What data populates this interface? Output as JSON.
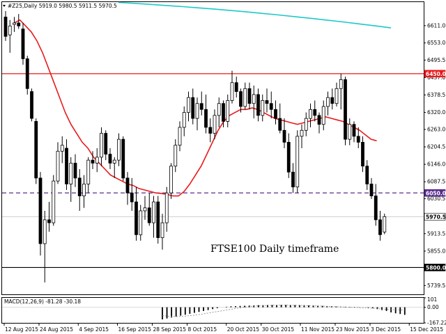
{
  "header": {
    "symbol_line": "#Z25,Daily  5919.0 5980.5 5911.5 5970.5",
    "annotation": "FTSE100 Daily timeframe"
  },
  "macd": {
    "label": "MACD(12,26,9) -81.28 -30.18",
    "axis_labels": [
      {
        "text": "101",
        "v": 101
      },
      {
        "text": "0.00",
        "v": 0
      },
      {
        "text": "-167.22",
        "v": -167.22
      }
    ]
  },
  "colors": {
    "background": "#ffffff",
    "candle": "#000000",
    "ma_fast": "#e8191b",
    "ma_slow": "#1ec8c8",
    "resistance": "#e8191b",
    "middle_level": "#5a2d8c",
    "support": "#000000",
    "current_price": "#c0c0c0",
    "macd_signal": "#808080"
  },
  "chart_data": {
    "type": "candlestick",
    "symbol": "#Z25",
    "timeframe": "Daily",
    "annotation": "FTSE100 Daily timeframe",
    "last_bar": {
      "open": 5919.0,
      "high": 5980.5,
      "low": 5911.5,
      "close": 5970.5
    },
    "ylim": [
      5710,
      6690
    ],
    "y_ticks": [
      6611.0,
      6553.0,
      6495.5,
      6437.0,
      6378.5,
      6320.0,
      6263.0,
      6204.5,
      6146.0,
      6087.5,
      6030.5,
      5913.5,
      5855.0,
      5739.5
    ],
    "x_ticks": [
      {
        "label": "12 Aug 2015",
        "index": 0
      },
      {
        "label": "24 Aug 2015",
        "index": 8
      },
      {
        "label": "4 Sep 2015",
        "index": 17
      },
      {
        "label": "16 Sep 2015",
        "index": 26
      },
      {
        "label": "28 Sep 2015",
        "index": 34
      },
      {
        "label": "8 Oct 2015",
        "index": 42
      },
      {
        "label": "20 Oct 2015",
        "index": 51
      },
      {
        "label": "30 Oct 2015",
        "index": 59
      },
      {
        "label": "11 Nov 2015",
        "index": 68
      },
      {
        "label": "23 Nov 2015",
        "index": 76
      },
      {
        "label": "3 Dec 2015",
        "index": 84
      },
      {
        "label": "15 Dec 2015",
        "index": 93
      }
    ],
    "levels": [
      {
        "name": "resistance",
        "value": 6450.0,
        "label": "6450.0",
        "style": "solid"
      },
      {
        "name": "middle",
        "value": 6050.0,
        "label": "6050.0",
        "style": "dashed"
      },
      {
        "name": "current",
        "value": 5970.5,
        "label": "5970.5",
        "style": "solid"
      },
      {
        "name": "support",
        "value": 5800.0,
        "label": "5800.0",
        "style": "solid"
      }
    ],
    "candles": [
      [
        6640,
        6660,
        6560,
        6575
      ],
      [
        6580,
        6630,
        6520,
        6610
      ],
      [
        6615,
        6640,
        6590,
        6620
      ],
      [
        6620,
        6650,
        6600,
        6610
      ],
      [
        6600,
        6620,
        6480,
        6500
      ],
      [
        6500,
        6510,
        6380,
        6400
      ],
      [
        6390,
        6400,
        6290,
        6300
      ],
      [
        6290,
        6300,
        6080,
        6100
      ],
      [
        6100,
        6120,
        5840,
        5880
      ],
      [
        5880,
        5990,
        5750,
        5960
      ],
      [
        5960,
        6020,
        5920,
        5950
      ],
      [
        5950,
        6110,
        5940,
        6090
      ],
      [
        6090,
        6220,
        6080,
        6190
      ],
      [
        6190,
        6240,
        6150,
        6210
      ],
      [
        6200,
        6230,
        6060,
        6080
      ],
      [
        6080,
        6170,
        6020,
        6150
      ],
      [
        6150,
        6180,
        6070,
        6100
      ],
      [
        6100,
        6130,
        5990,
        6040
      ],
      [
        6040,
        6110,
        6000,
        6080
      ],
      [
        6080,
        6170,
        6050,
        6160
      ],
      [
        6160,
        6190,
        6130,
        6150
      ],
      [
        6150,
        6200,
        6120,
        6170
      ],
      [
        6170,
        6270,
        6140,
        6250
      ],
      [
        6250,
        6260,
        6160,
        6180
      ],
      [
        6180,
        6200,
        6130,
        6150
      ],
      [
        6150,
        6170,
        6100,
        6160
      ],
      [
        6160,
        6250,
        6140,
        6230
      ],
      [
        6230,
        6240,
        6090,
        6100
      ],
      [
        6100,
        6120,
        6010,
        6050
      ],
      [
        6050,
        6100,
        5990,
        6020
      ],
      [
        6020,
        6070,
        5890,
        5910
      ],
      [
        5910,
        6010,
        5890,
        5990
      ],
      [
        5990,
        6040,
        5960,
        6000
      ],
      [
        6000,
        6050,
        5940,
        5950
      ],
      [
        5950,
        6040,
        5900,
        6020
      ],
      [
        6020,
        6040,
        5880,
        5900
      ],
      [
        5900,
        5980,
        5860,
        5950
      ],
      [
        5950,
        6070,
        5920,
        6050
      ],
      [
        6050,
        6150,
        6030,
        6140
      ],
      [
        6140,
        6230,
        6120,
        6210
      ],
      [
        6210,
        6290,
        6190,
        6270
      ],
      [
        6270,
        6340,
        6240,
        6320
      ],
      [
        6320,
        6390,
        6290,
        6370
      ],
      [
        6370,
        6400,
        6280,
        6300
      ],
      [
        6300,
        6370,
        6260,
        6350
      ],
      [
        6350,
        6390,
        6310,
        6330
      ],
      [
        6330,
        6380,
        6250,
        6270
      ],
      [
        6270,
        6300,
        6220,
        6250
      ],
      [
        6250,
        6330,
        6230,
        6310
      ],
      [
        6310,
        6370,
        6270,
        6350
      ],
      [
        6350,
        6360,
        6270,
        6290
      ],
      [
        6290,
        6380,
        6270,
        6360
      ],
      [
        6360,
        6460,
        6350,
        6420
      ],
      [
        6420,
        6440,
        6370,
        6390
      ],
      [
        6390,
        6400,
        6320,
        6340
      ],
      [
        6340,
        6420,
        6330,
        6400
      ],
      [
        6400,
        6420,
        6330,
        6350
      ],
      [
        6350,
        6410,
        6300,
        6380
      ],
      [
        6380,
        6400,
        6290,
        6310
      ],
      [
        6310,
        6380,
        6290,
        6360
      ],
      [
        6360,
        6400,
        6320,
        6350
      ],
      [
        6350,
        6390,
        6300,
        6330
      ],
      [
        6330,
        6360,
        6280,
        6300
      ],
      [
        6300,
        6350,
        6250,
        6260
      ],
      [
        6260,
        6300,
        6200,
        6220
      ],
      [
        6220,
        6250,
        6100,
        6120
      ],
      [
        6120,
        6150,
        6050,
        6070
      ],
      [
        6070,
        6260,
        6050,
        6240
      ],
      [
        6240,
        6280,
        6200,
        6260
      ],
      [
        6260,
        6320,
        6240,
        6300
      ],
      [
        6300,
        6350,
        6270,
        6330
      ],
      [
        6330,
        6360,
        6290,
        6310
      ],
      [
        6310,
        6320,
        6250,
        6280
      ],
      [
        6280,
        6360,
        6260,
        6340
      ],
      [
        6340,
        6390,
        6310,
        6370
      ],
      [
        6370,
        6400,
        6330,
        6350
      ],
      [
        6350,
        6420,
        6340,
        6400
      ],
      [
        6400,
        6450,
        6330,
        6430
      ],
      [
        6430,
        6440,
        6210,
        6230
      ],
      [
        6230,
        6300,
        6210,
        6280
      ],
      [
        6280,
        6290,
        6220,
        6240
      ],
      [
        6240,
        6270,
        6200,
        6220
      ],
      [
        6220,
        6240,
        6120,
        6140
      ],
      [
        6140,
        6160,
        6060,
        6080
      ],
      [
        6080,
        6100,
        6030,
        6040
      ],
      [
        6040,
        6080,
        5940,
        5960
      ],
      [
        5960,
        5990,
        5890,
        5910
      ],
      [
        5919,
        5980.5,
        5911.5,
        5970.5
      ]
    ],
    "ma_fast": [
      6620,
      6630,
      6610,
      6590,
      6560,
      6520,
      6470,
      6420,
      6370,
      6320,
      6280,
      6250,
      6220,
      6200,
      6170,
      6150,
      6130,
      6110,
      6100,
      6090,
      6080,
      6075,
      6065,
      6060,
      6055,
      6050,
      6048,
      6045,
      6040,
      6040,
      6055,
      6080,
      6110,
      6140,
      6180,
      6220,
      6260,
      6290,
      6310,
      6320,
      6330,
      6330,
      6335,
      6330,
      6320,
      6310,
      6300,
      6295,
      6290,
      6285,
      6280,
      6285,
      6290,
      6295,
      6300,
      6305,
      6300,
      6295,
      6290,
      6280,
      6270,
      6260,
      6245,
      6230,
      6225
    ],
    "ma_fast_start": 2,
    "ma_slow": [
      6690,
      6685,
      6680,
      6675,
      6670,
      6660,
      6650,
      6640,
      6630,
      6620,
      6610,
      6600,
      6595,
      6590,
      6580,
      6570,
      6560,
      6550
    ],
    "ma_slow_start": 36,
    "macd_hist": [
      -130,
      -120,
      -110,
      -100,
      -90,
      -80,
      -70,
      -60,
      -50,
      -40,
      -30,
      -20,
      -10,
      0,
      5,
      10,
      12,
      14,
      16,
      18,
      20,
      22,
      22,
      24,
      24,
      25,
      26,
      26,
      25,
      24,
      23,
      22,
      20,
      18,
      16,
      14,
      12,
      10,
      8,
      6,
      5,
      4,
      3,
      2,
      0,
      -5,
      -10,
      -20,
      -30,
      -40,
      -55,
      -65,
      -72,
      -81.28
    ],
    "macd_signal": [
      -90,
      -95,
      -98,
      -100,
      -98,
      -95,
      -90,
      -85,
      -78,
      -70,
      -62,
      -54,
      -46,
      -38,
      -30,
      -22,
      -14,
      -6,
      2,
      8,
      12,
      16,
      18,
      20,
      21,
      22,
      22,
      22,
      21,
      20,
      19,
      18,
      17,
      16,
      14,
      12,
      10,
      8,
      6,
      4,
      2,
      0,
      -2,
      -4,
      -6,
      -9,
      -12,
      -15,
      -19,
      -22,
      -25,
      -27,
      -29,
      -30.18
    ]
  }
}
